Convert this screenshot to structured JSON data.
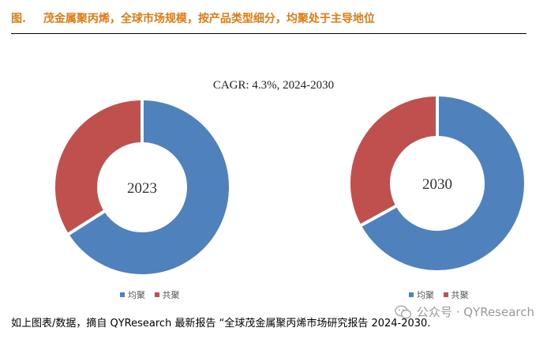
{
  "figure": {
    "number": "图.",
    "title": "茂金属聚丙烯，全球市场规模，按产品类型细分，均聚处于主导地位"
  },
  "subtitle": "CAGR:  4.3%, 2024-2030",
  "chart_data": [
    {
      "type": "pie",
      "center_label": "2023",
      "categories": [
        "均聚",
        "共聚"
      ],
      "values": [
        66,
        34
      ],
      "colors": [
        "#4f81bd",
        "#c0504d"
      ],
      "legend_position": "bottom"
    },
    {
      "type": "pie",
      "center_label": "2030",
      "categories": [
        "均聚",
        "共聚"
      ],
      "values": [
        67,
        33
      ],
      "colors": [
        "#4f81bd",
        "#c0504d"
      ],
      "legend_position": "bottom"
    }
  ],
  "caption": "如上图表/数据，摘自 QYResearch 最新报告 “全球茂金属聚丙烯市场研究报告 2024-2030.",
  "watermark": {
    "text": "公众号 · QYResearch",
    "icon": "wechat-icon"
  }
}
